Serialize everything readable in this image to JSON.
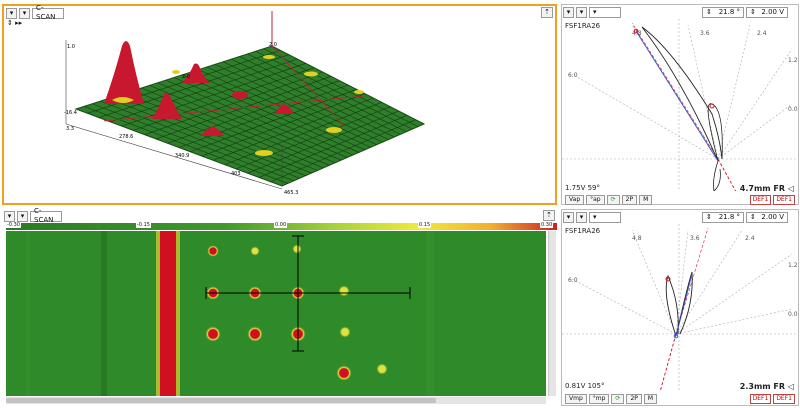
{
  "top_left": {
    "view_select": "C-SCAN",
    "axis_labels": [
      "1.0",
      "2.0",
      "2.0",
      "-16.4",
      "3.3",
      "278.6",
      "340.9",
      "403",
      "465.3"
    ]
  },
  "bottom_left": {
    "view_select": "C-SCAN",
    "colorbar_ticks": [
      "-0.30",
      "-0.15",
      "0.00",
      "0.15",
      "0.30"
    ]
  },
  "top_right": {
    "angle": "21.8 °",
    "voltage": "2.00 V",
    "probe_id": "FSF1RA26",
    "scale_labels": [
      "4.8",
      "3.6",
      "2.4",
      "1.2",
      "6.0",
      "0.0"
    ],
    "readout_left": "1.75V 59°",
    "readout_right": "4.7mm FR",
    "buttons": [
      "Vap",
      "°ap",
      "2P",
      "M"
    ],
    "def_buttons": [
      "DEF1",
      "DEF1"
    ]
  },
  "bottom_right": {
    "angle": "21.8 °",
    "voltage": "2.00 V",
    "probe_id": "FSF1RA26",
    "scale_labels": [
      "4.8",
      "3.6",
      "2.4",
      "1.2",
      "6.0",
      "0.0"
    ],
    "readout_left": "0.81V 105°",
    "readout_right": "2.3mm FR",
    "buttons": [
      "Vmp",
      "°mp",
      "2P",
      "M"
    ],
    "def_buttons": [
      "DEF1",
      "DEF1"
    ]
  },
  "colors": {
    "cscan_green": "#2f8a2a",
    "defect_red": "#d01020",
    "highlight_border": "#f0a020",
    "cursor": "#000000"
  }
}
